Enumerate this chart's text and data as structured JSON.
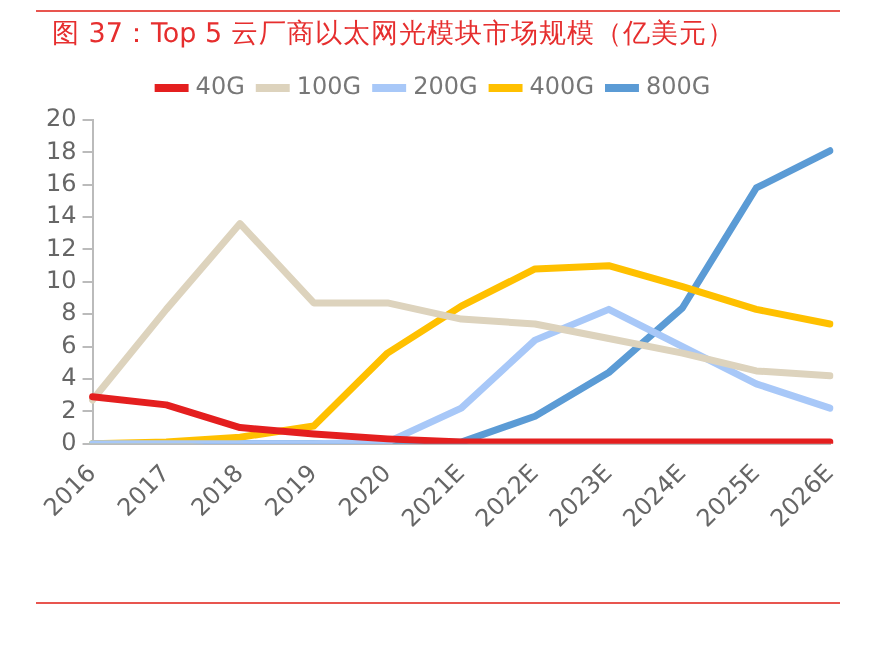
{
  "chart_data": {
    "type": "line",
    "title": "图 37：Top 5 云厂商以太网光模块市场规模（亿美元）",
    "categories": [
      "2016",
      "2017",
      "2018",
      "2019",
      "2020",
      "2021E",
      "2022E",
      "2023E",
      "2024E",
      "2025E",
      "2026E"
    ],
    "series": [
      {
        "name": "40G",
        "color": "#e41f1f",
        "values": [
          2.9,
          2.4,
          1.0,
          0.6,
          0.3,
          0.1,
          0.1,
          0.1,
          0.1,
          0.1,
          0.1
        ]
      },
      {
        "name": "100G",
        "color": "#ddd3bd",
        "values": [
          2.7,
          8.3,
          13.6,
          8.7,
          8.7,
          7.7,
          7.4,
          6.5,
          5.6,
          4.5,
          4.2
        ]
      },
      {
        "name": "200G",
        "color": "#a8c8f8",
        "values": [
          0,
          0,
          0,
          0,
          0.1,
          2.2,
          6.4,
          8.3,
          6.0,
          3.7,
          2.2
        ]
      },
      {
        "name": "400G",
        "color": "#ffc000",
        "values": [
          0,
          0.1,
          0.4,
          1.1,
          5.6,
          8.5,
          10.8,
          11.0,
          9.7,
          8.3,
          7.4
        ]
      },
      {
        "name": "800G",
        "color": "#5b9bd5",
        "values": [
          0,
          0,
          0,
          0,
          0,
          0.1,
          1.7,
          4.4,
          8.4,
          15.8,
          18.1
        ]
      }
    ],
    "ylim": [
      0,
      20
    ],
    "yticks": [
      0,
      2,
      4,
      6,
      8,
      10,
      12,
      14,
      16,
      18,
      20
    ],
    "grid": false,
    "legend": "top",
    "marker": "none",
    "line_style": "solid"
  }
}
